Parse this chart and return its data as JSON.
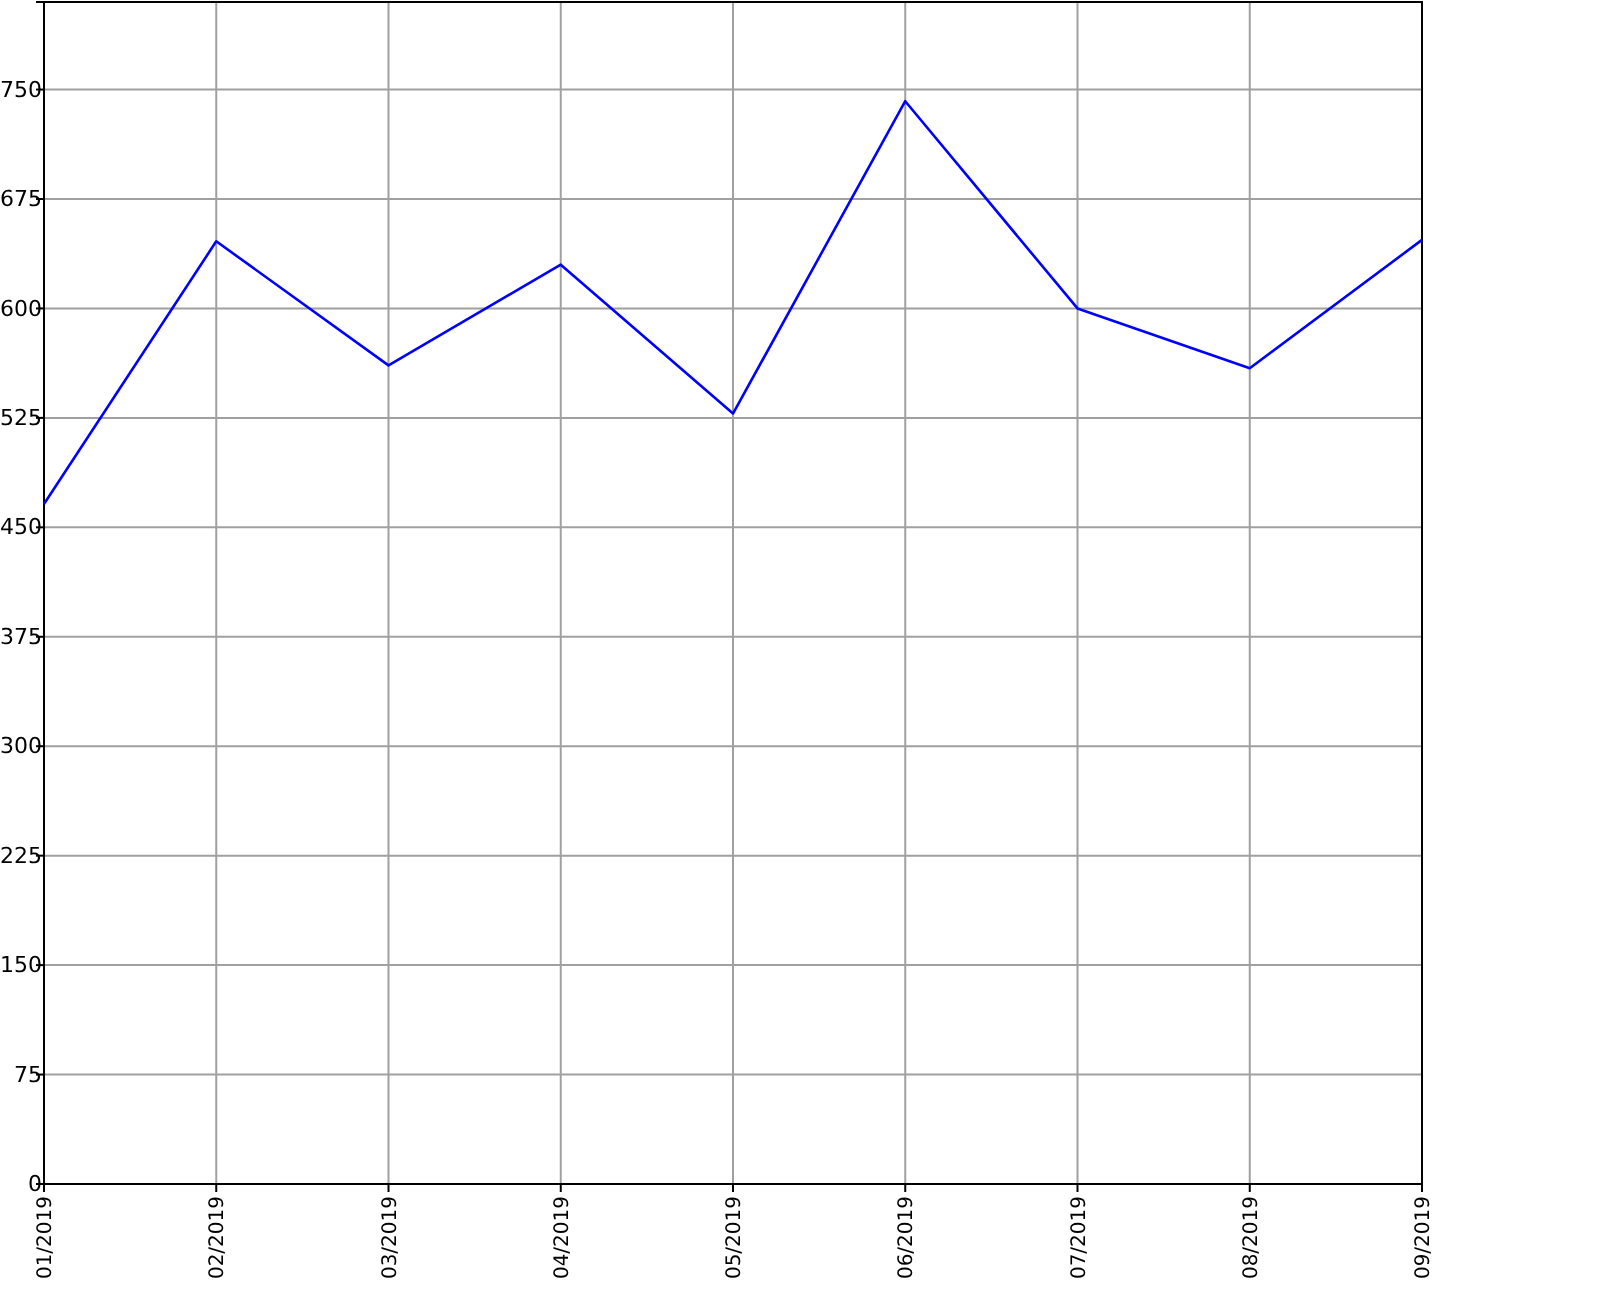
{
  "chart_data": {
    "type": "line",
    "categories": [
      "01/2019",
      "02/2019",
      "03/2019",
      "04/2019",
      "05/2019",
      "06/2019",
      "07/2019",
      "08/2019",
      "09/2019"
    ],
    "series": [
      {
        "color": "#0000ff",
        "values": [
          466,
          646,
          561,
          630,
          528,
          742,
          600,
          559,
          647
        ]
      }
    ],
    "ylim": [
      0,
      810
    ],
    "yticks": [
      0,
      75,
      150,
      225,
      300,
      375,
      450,
      525,
      600,
      675,
      750
    ],
    "grid": true,
    "marker": "none",
    "line_style": "solid"
  }
}
